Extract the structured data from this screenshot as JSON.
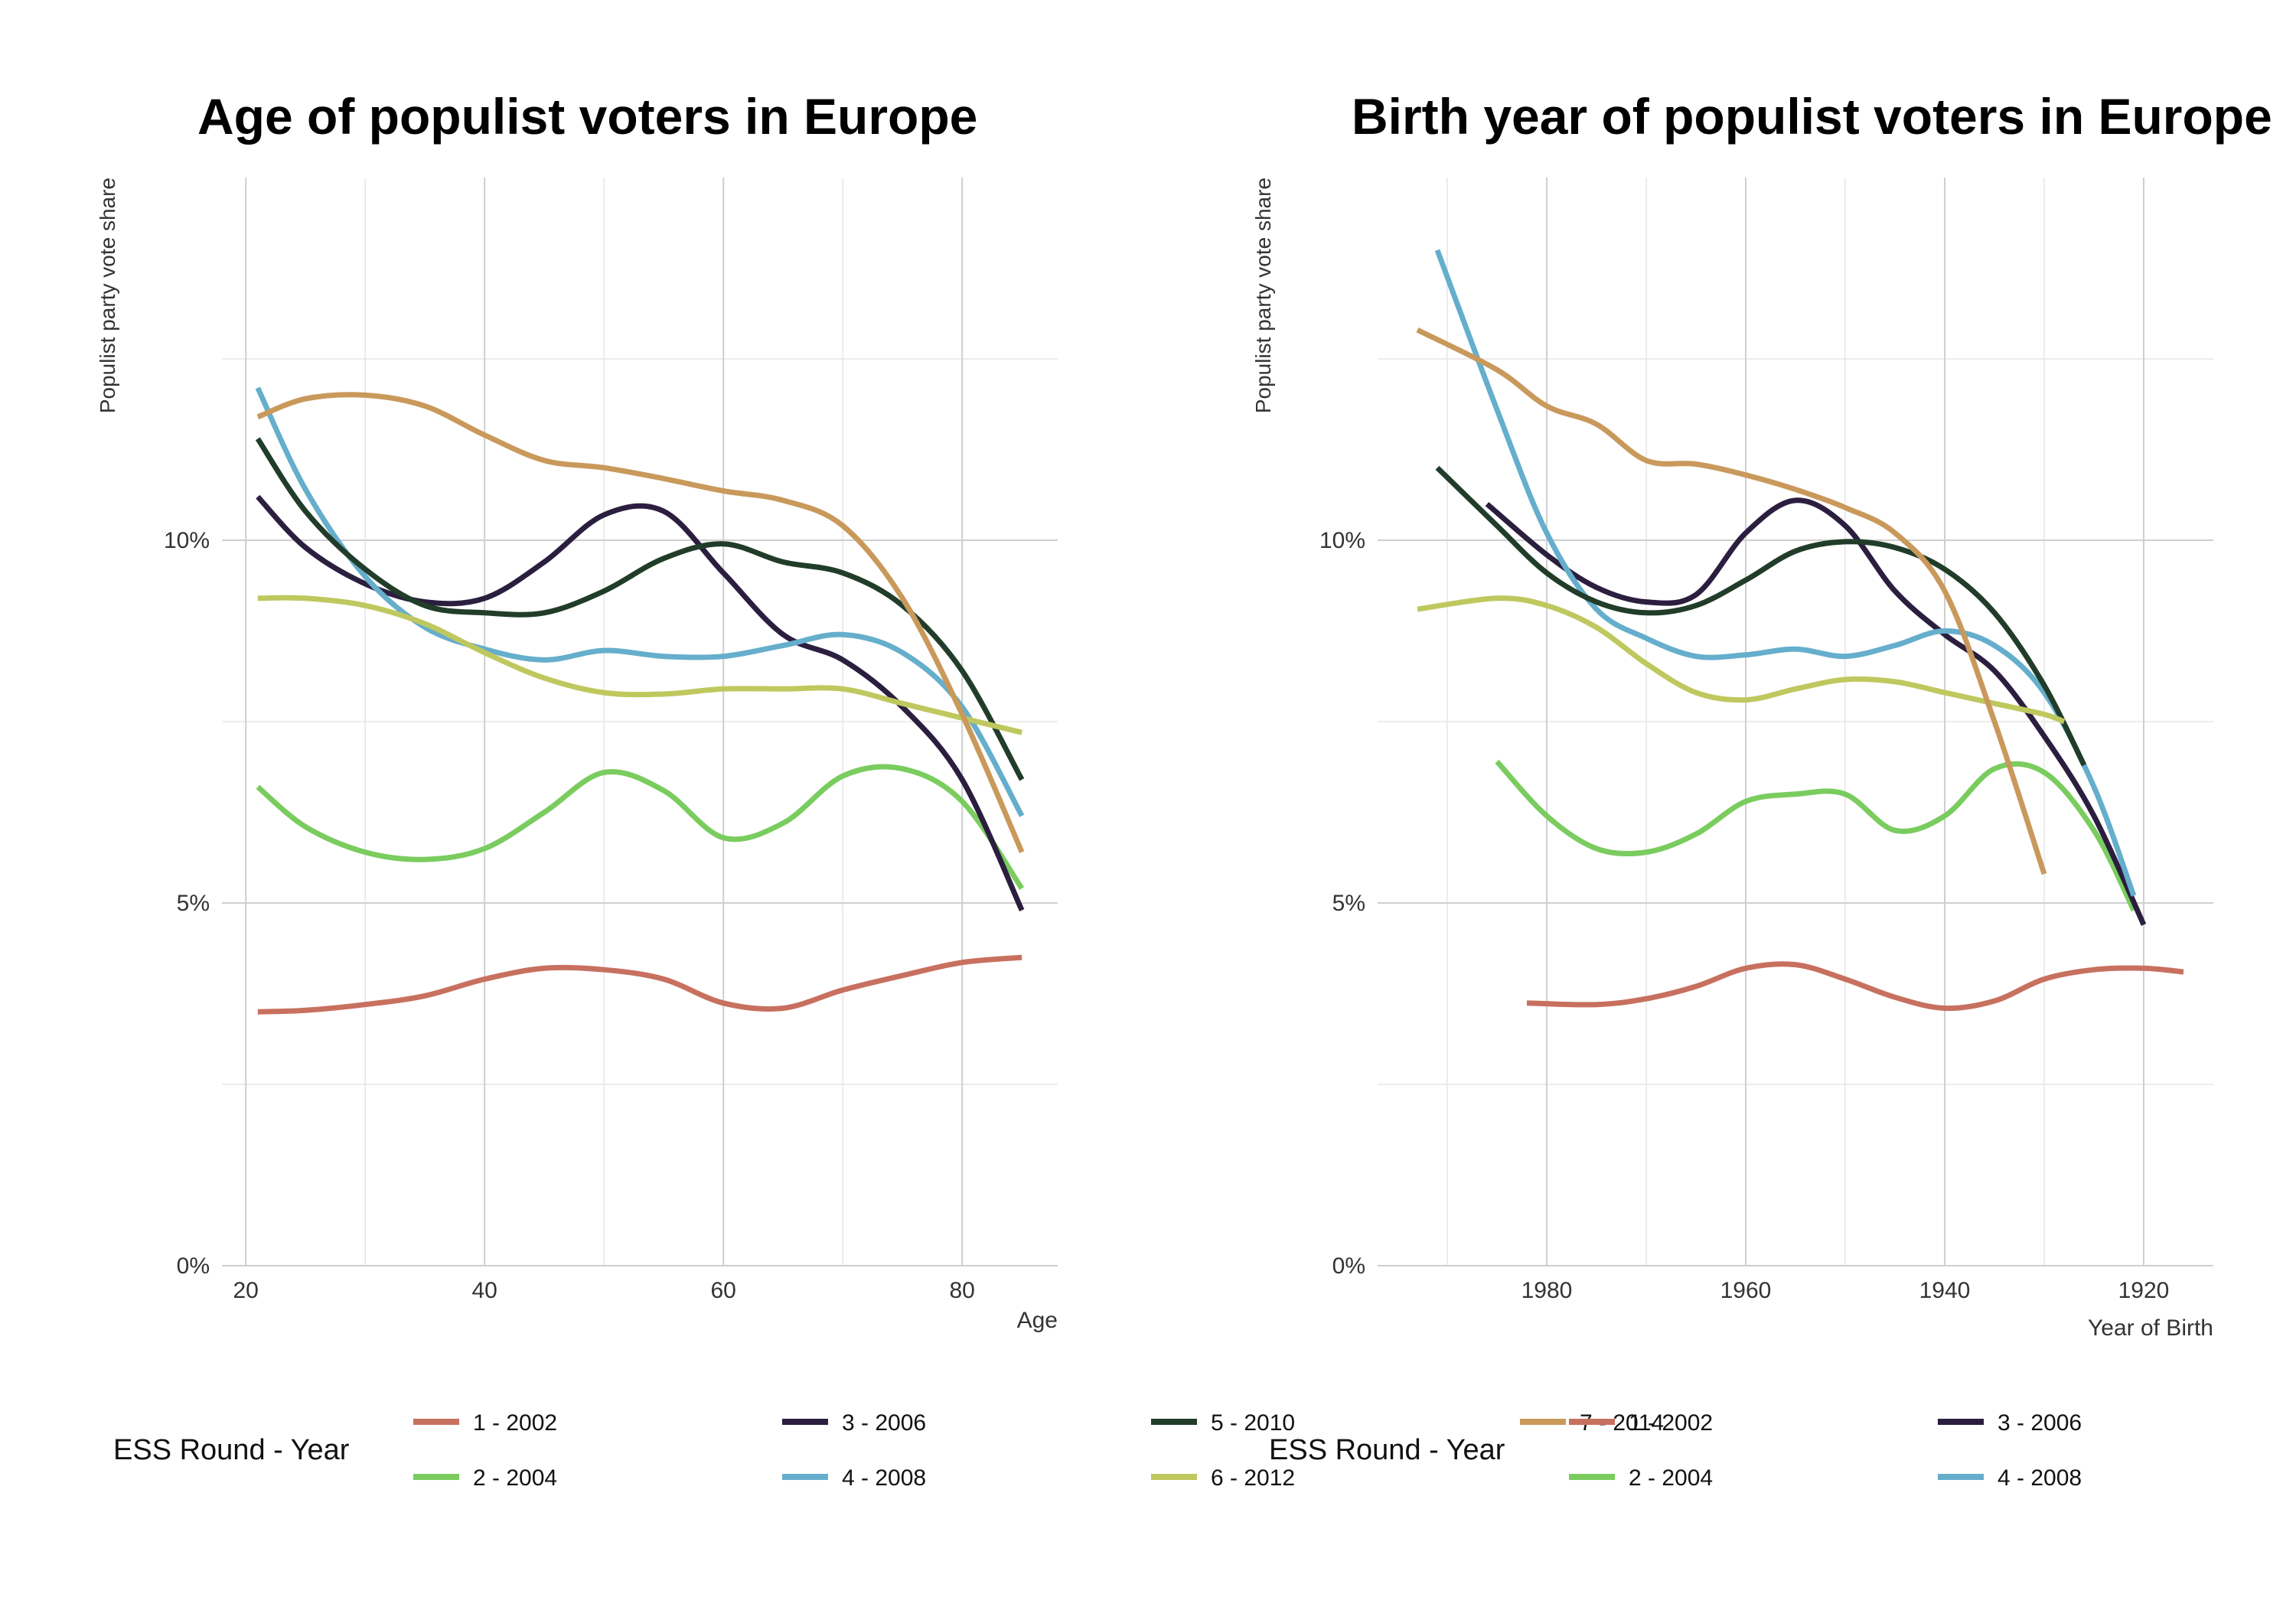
{
  "chart_data": [
    {
      "type": "line",
      "title": "Age of populist voters in Europe",
      "xlabel": "Age",
      "ylabel": "Populist party vote share",
      "xlim": [
        18,
        88
      ],
      "ylim": [
        0,
        0.15
      ],
      "x_ticks": [
        20,
        40,
        60,
        80
      ],
      "x_tick_labels": [
        "20",
        "40",
        "60",
        "80"
      ],
      "y_ticks": [
        0,
        0.05,
        0.1
      ],
      "y_tick_labels": [
        "0%",
        "5%",
        "10%"
      ],
      "grid": true,
      "legend_title": "ESS Round - Year",
      "legend_position": "bottom",
      "series": [
        {
          "name": "1 - 2002",
          "color": "#C8705F",
          "x": [
            21,
            25,
            30,
            35,
            40,
            45,
            50,
            55,
            60,
            65,
            70,
            75,
            80,
            85
          ],
          "values": [
            0.035,
            0.0352,
            0.036,
            0.0372,
            0.0395,
            0.041,
            0.0408,
            0.0395,
            0.0362,
            0.0355,
            0.038,
            0.04,
            0.0418,
            0.0425
          ]
        },
        {
          "name": "2 - 2004",
          "color": "#7ACC5F",
          "x": [
            21,
            25,
            30,
            35,
            40,
            45,
            50,
            55,
            60,
            65,
            70,
            75,
            80,
            85
          ],
          "values": [
            0.066,
            0.0605,
            0.057,
            0.056,
            0.0575,
            0.0625,
            0.068,
            0.0655,
            0.059,
            0.061,
            0.0675,
            0.0685,
            0.064,
            0.052
          ]
        },
        {
          "name": "3 - 2006",
          "color": "#2B1E3F",
          "x": [
            21,
            25,
            30,
            35,
            40,
            45,
            50,
            55,
            60,
            65,
            70,
            75,
            80,
            85
          ],
          "values": [
            0.106,
            0.099,
            0.094,
            0.0915,
            0.092,
            0.097,
            0.1035,
            0.104,
            0.0955,
            0.087,
            0.0835,
            0.077,
            0.067,
            0.049
          ]
        },
        {
          "name": "4 - 2008",
          "color": "#65AECC",
          "x": [
            21,
            25,
            30,
            35,
            40,
            45,
            50,
            55,
            60,
            65,
            70,
            75,
            80,
            85
          ],
          "values": [
            0.121,
            0.107,
            0.095,
            0.088,
            0.085,
            0.0835,
            0.0848,
            0.084,
            0.084,
            0.0855,
            0.087,
            0.0845,
            0.077,
            0.062
          ]
        },
        {
          "name": "5 - 2010",
          "color": "#213D2A",
          "x": [
            21,
            25,
            30,
            35,
            40,
            45,
            50,
            55,
            60,
            65,
            70,
            75,
            80,
            85
          ],
          "values": [
            0.114,
            0.104,
            0.096,
            0.091,
            0.09,
            0.09,
            0.093,
            0.0975,
            0.0995,
            0.097,
            0.0955,
            0.091,
            0.082,
            0.067
          ]
        },
        {
          "name": "6 - 2012",
          "color": "#BFC85E",
          "x": [
            21,
            25,
            30,
            35,
            40,
            45,
            50,
            55,
            60,
            65,
            70,
            75,
            80,
            85
          ],
          "values": [
            0.092,
            0.092,
            0.091,
            0.0885,
            0.0845,
            0.081,
            0.079,
            0.0788,
            0.0795,
            0.0795,
            0.0795,
            0.0775,
            0.0755,
            0.0735
          ]
        },
        {
          "name": "7 - 2014",
          "color": "#C9995C",
          "x": [
            21,
            25,
            30,
            35,
            40,
            45,
            50,
            55,
            60,
            65,
            70,
            75,
            80,
            85
          ],
          "values": [
            0.117,
            0.1195,
            0.12,
            0.1185,
            0.1145,
            0.111,
            0.11,
            0.1085,
            0.1068,
            0.1055,
            0.102,
            0.092,
            0.076,
            0.057
          ]
        }
      ]
    },
    {
      "type": "line",
      "title": "Birth year of populist voters in Europe",
      "xlabel": "Year of Birth",
      "ylabel": "Populist party vote share",
      "xlim": [
        1997,
        1913
      ],
      "ylim": [
        0,
        0.15
      ],
      "x_reversed": true,
      "x_ticks": [
        1980,
        1960,
        1940,
        1920
      ],
      "x_tick_labels": [
        "1980",
        "1960",
        "1940",
        "1920"
      ],
      "y_ticks": [
        0,
        0.05,
        0.1
      ],
      "y_tick_labels": [
        "0%",
        "5%",
        "10%"
      ],
      "grid": true,
      "legend_title": "ESS Round - Year",
      "legend_position": "bottom",
      "series": [
        {
          "name": "1 - 2002",
          "color": "#C8705F",
          "x": [
            1982,
            1975,
            1970,
            1965,
            1960,
            1955,
            1950,
            1945,
            1940,
            1935,
            1930,
            1925,
            1920,
            1916
          ],
          "values": [
            0.0362,
            0.036,
            0.0368,
            0.0385,
            0.041,
            0.0415,
            0.0395,
            0.037,
            0.0355,
            0.0365,
            0.0395,
            0.0408,
            0.041,
            0.0405
          ]
        },
        {
          "name": "2 - 2004",
          "color": "#7ACC5F",
          "x": [
            1985,
            1980,
            1975,
            1970,
            1965,
            1960,
            1955,
            1950,
            1945,
            1940,
            1935,
            1930,
            1925,
            1921
          ],
          "values": [
            0.0695,
            0.062,
            0.0575,
            0.057,
            0.0595,
            0.064,
            0.065,
            0.065,
            0.06,
            0.062,
            0.0685,
            0.068,
            0.06,
            0.049
          ]
        },
        {
          "name": "3 - 2006",
          "color": "#2B1E3F",
          "x": [
            1986,
            1980,
            1975,
            1970,
            1965,
            1960,
            1955,
            1950,
            1945,
            1940,
            1935,
            1930,
            1925,
            1920
          ],
          "values": [
            0.105,
            0.098,
            0.0935,
            0.0915,
            0.0925,
            0.101,
            0.1055,
            0.102,
            0.093,
            0.087,
            0.082,
            0.073,
            0.062,
            0.047
          ]
        },
        {
          "name": "4 - 2008",
          "color": "#65AECC",
          "x": [
            1991,
            1985,
            1980,
            1975,
            1970,
            1965,
            1960,
            1955,
            1950,
            1945,
            1940,
            1935,
            1930,
            1925,
            1921
          ],
          "values": [
            0.14,
            0.118,
            0.101,
            0.0905,
            0.0865,
            0.084,
            0.0842,
            0.085,
            0.084,
            0.0855,
            0.0875,
            0.0855,
            0.079,
            0.066,
            0.051
          ]
        },
        {
          "name": "5 - 2010",
          "color": "#213D2A",
          "x": [
            1991,
            1985,
            1980,
            1975,
            1970,
            1965,
            1960,
            1955,
            1950,
            1945,
            1940,
            1935,
            1930,
            1926
          ],
          "values": [
            0.11,
            0.102,
            0.0955,
            0.0915,
            0.09,
            0.091,
            0.0945,
            0.0985,
            0.0998,
            0.099,
            0.096,
            0.09,
            0.08,
            0.069
          ]
        },
        {
          "name": "6 - 2012",
          "color": "#BFC85E",
          "x": [
            1993,
            1985,
            1980,
            1975,
            1970,
            1965,
            1960,
            1955,
            1950,
            1945,
            1940,
            1935,
            1930,
            1928
          ],
          "values": [
            0.0905,
            0.092,
            0.091,
            0.088,
            0.083,
            0.079,
            0.078,
            0.0795,
            0.0808,
            0.0805,
            0.079,
            0.0775,
            0.076,
            0.075
          ]
        },
        {
          "name": "7 - 2014",
          "color": "#C9995C",
          "x": [
            1993,
            1985,
            1980,
            1975,
            1970,
            1965,
            1960,
            1955,
            1950,
            1945,
            1940,
            1935,
            1930
          ],
          "values": [
            0.129,
            0.1235,
            0.1185,
            0.116,
            0.111,
            0.1105,
            0.109,
            0.107,
            0.1045,
            0.101,
            0.093,
            0.075,
            0.054
          ]
        }
      ]
    }
  ]
}
